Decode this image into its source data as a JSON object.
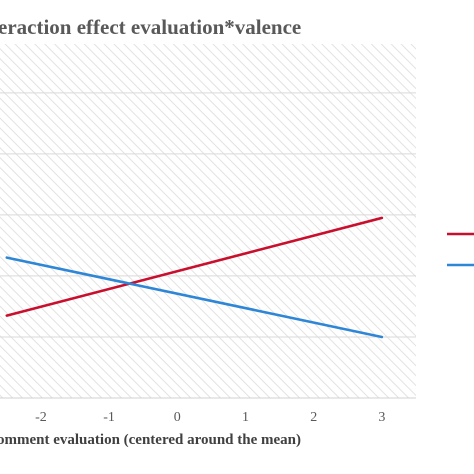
{
  "chart_data": {
    "type": "line",
    "title": "eraction  effect evaluation*valence",
    "xlabel": "omment evaluation (centered around the mean)",
    "ylabel": "",
    "x": [
      -2.5,
      3
    ],
    "x_ticks": [
      "-2",
      "-1",
      "0",
      "1",
      "2",
      "3"
    ],
    "xlim": [
      -2.6,
      3.5
    ],
    "ylim": [
      0,
      5.8
    ],
    "y_gridlines": [
      0,
      1,
      2,
      3,
      4,
      5
    ],
    "grid": true,
    "series": [
      {
        "values": [
          1.35,
          2.95
        ],
        "color": "#c8102e"
      },
      {
        "values": [
          2.3,
          1.0
        ],
        "color": "#2e86d6"
      }
    ],
    "legend": {
      "placement": "right",
      "entries": [
        {
          "color": "#c8102e"
        },
        {
          "color": "#2e86d6"
        }
      ]
    },
    "hatch_background": true
  }
}
